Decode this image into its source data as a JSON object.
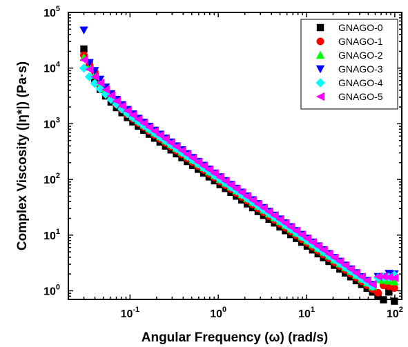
{
  "chart_data": {
    "type": "scatter",
    "xlabel": "Angular Frequency (ω) (rad/s)",
    "ylabel": "Complex Viscosity (|η*|) (Pa·s)",
    "xscale": "log",
    "yscale": "log",
    "xlim": [
      0.02,
      120
    ],
    "ylim": [
      0.7,
      100000
    ],
    "x_ticks": [
      {
        "value": 0.1,
        "base": "10",
        "exp": "-1"
      },
      {
        "value": 1,
        "base": "10",
        "exp": "0"
      },
      {
        "value": 10,
        "base": "10",
        "exp": "1"
      },
      {
        "value": 100,
        "base": "10",
        "exp": "2"
      }
    ],
    "y_ticks": [
      {
        "value": 1,
        "base": "10",
        "exp": "0"
      },
      {
        "value": 10,
        "base": "10",
        "exp": "1"
      },
      {
        "value": 100,
        "base": "10",
        "exp": "2"
      },
      {
        "value": 1000,
        "base": "10",
        "exp": "3"
      },
      {
        "value": 10000,
        "base": "10",
        "exp": "4"
      },
      {
        "value": 100000,
        "base": "10",
        "exp": "5"
      }
    ],
    "grid": false,
    "legend_position": "top-right",
    "x": [
      0.03,
      0.0346,
      0.0398,
      0.0459,
      0.0529,
      0.061,
      0.0703,
      0.081,
      0.0934,
      0.1077,
      0.1241,
      0.1431,
      0.1649,
      0.1901,
      0.2191,
      0.2526,
      0.2912,
      0.3356,
      0.3869,
      0.446,
      0.5141,
      0.5926,
      0.6831,
      0.7875,
      0.9077,
      1.0464,
      1.2062,
      1.3904,
      1.6027,
      1.8475,
      2.1297,
      2.4549,
      2.8299,
      3.2621,
      3.7602,
      4.3345,
      4.9965,
      5.7596,
      6.6392,
      7.6531,
      8.8219,
      10.1692,
      11.7223,
      13.5125,
      15.5761,
      17.9549,
      20.697,
      23.8579,
      27.5016,
      31.7016,
      36.5432,
      42.1241,
      48.5573,
      55.9731,
      64.5215,
      74.3753,
      85.7341,
      98.8277
    ],
    "series": [
      {
        "name": "GNAGO-0",
        "marker": "square",
        "color": "#000000",
        "values": [
          22000,
          12500,
          6200,
          4150,
          3150,
          2450,
          1950,
          1580,
          1290,
          1080,
          907,
          766,
          649,
          551,
          468,
          398,
          339,
          289,
          246,
          210,
          179,
          152,
          130,
          111,
          94.6,
          80.7,
          68.8,
          58.7,
          50.1,
          42.7,
          36.4,
          31.1,
          26.5,
          22.6,
          19.3,
          16.5,
          14.0,
          12.0,
          10.2,
          8.72,
          7.44,
          6.35,
          5.42,
          4.62,
          3.94,
          3.36,
          2.87,
          2.45,
          2.09,
          1.78,
          1.52,
          1.3,
          1.11,
          0.95,
          0.81,
          0.69,
          0.95,
          0.65
        ]
      },
      {
        "name": "GNAGO-1",
        "marker": "circle",
        "color": "#ff0000",
        "values": [
          17000,
          11500,
          8600,
          5000,
          3650,
          2800,
          2230,
          1800,
          1470,
          1230,
          1030,
          871,
          739,
          627,
          533,
          453,
          386,
          329,
          280,
          239,
          203,
          173,
          148,
          126,
          108,
          91.8,
          78.3,
          66.8,
          57.0,
          48.6,
          41.4,
          35.3,
          30.1,
          25.7,
          21.9,
          18.7,
          15.9,
          13.6,
          11.6,
          9.9,
          8.45,
          7.21,
          6.15,
          5.25,
          4.48,
          3.82,
          3.26,
          2.78,
          2.37,
          2.02,
          1.73,
          1.47,
          1.26,
          1.07,
          0.92,
          1.25,
          1.2,
          1.12
        ]
      },
      {
        "name": "GNAGO-2",
        "marker": "triangle-up",
        "color": "#00ff00",
        "values": [
          15500,
          10500,
          7500,
          5600,
          4100,
          3130,
          2480,
          2000,
          1640,
          1360,
          1140,
          964,
          818,
          695,
          590,
          502,
          427,
          364,
          310,
          264,
          225,
          192,
          163,
          139,
          119,
          101,
          86.5,
          73.8,
          63.0,
          53.7,
          45.8,
          39.1,
          33.3,
          28.4,
          24.3,
          20.7,
          17.7,
          15.1,
          12.9,
          11.0,
          9.37,
          7.99,
          6.82,
          5.82,
          4.96,
          4.23,
          3.61,
          3.08,
          2.63,
          2.24,
          1.91,
          1.63,
          1.39,
          1.19,
          1.6,
          1.55,
          1.5,
          1.45
        ]
      },
      {
        "name": "GNAGO-3",
        "marker": "triangle-down",
        "color": "#0000ff",
        "values": [
          48000,
          12500,
          9000,
          6300,
          4550,
          3450,
          2730,
          2200,
          1800,
          1500,
          1250,
          1060,
          898,
          763,
          648,
          551,
          469,
          399,
          340,
          290,
          247,
          210,
          179,
          153,
          130,
          111,
          94.9,
          81.0,
          69.1,
          58.9,
          50.3,
          42.9,
          36.6,
          31.2,
          26.6,
          22.7,
          19.4,
          16.5,
          14.1,
          12.0,
          10.3,
          8.77,
          7.48,
          6.38,
          5.44,
          4.64,
          3.96,
          3.38,
          2.88,
          2.46,
          2.1,
          1.79,
          1.53,
          1.3,
          1.8,
          1.8,
          2.05,
          2.0
        ]
      },
      {
        "name": "GNAGO-4",
        "marker": "diamond",
        "color": "#00ffff",
        "values": [
          10000,
          7000,
          5300,
          4250,
          3400,
          2740,
          2250,
          1850,
          1540,
          1300,
          1100,
          935,
          795,
          678,
          578,
          493,
          420,
          358,
          306,
          261,
          223,
          190,
          162,
          139,
          118,
          101,
          86.4,
          73.7,
          62.9,
          53.7,
          45.8,
          39.1,
          33.4,
          28.5,
          24.3,
          20.8,
          17.7,
          15.1,
          12.9,
          11.0,
          9.4,
          8.02,
          6.85,
          5.85,
          4.99,
          4.26,
          3.64,
          3.1,
          2.65,
          2.26,
          1.93,
          1.65,
          1.41,
          1.2,
          1.7,
          1.75,
          1.75,
          1.9
        ]
      },
      {
        "name": "GNAGO-5",
        "marker": "triangle-left",
        "color": "#ff00ff",
        "values": [
          14000,
          9500,
          7000,
          5400,
          4100,
          3200,
          2560,
          2080,
          1710,
          1430,
          1200,
          1020,
          865,
          736,
          627,
          534,
          455,
          388,
          331,
          282,
          241,
          205,
          175,
          150,
          128,
          109,
          93.1,
          79.5,
          67.8,
          57.9,
          49.4,
          42.2,
          36.0,
          30.7,
          26.2,
          22.4,
          19.1,
          16.3,
          13.9,
          11.9,
          10.1,
          8.66,
          7.39,
          6.31,
          5.38,
          4.59,
          3.92,
          3.35,
          2.86,
          2.44,
          2.08,
          1.78,
          1.52,
          1.3,
          1.8,
          1.8,
          1.75,
          1.7
        ]
      }
    ]
  }
}
